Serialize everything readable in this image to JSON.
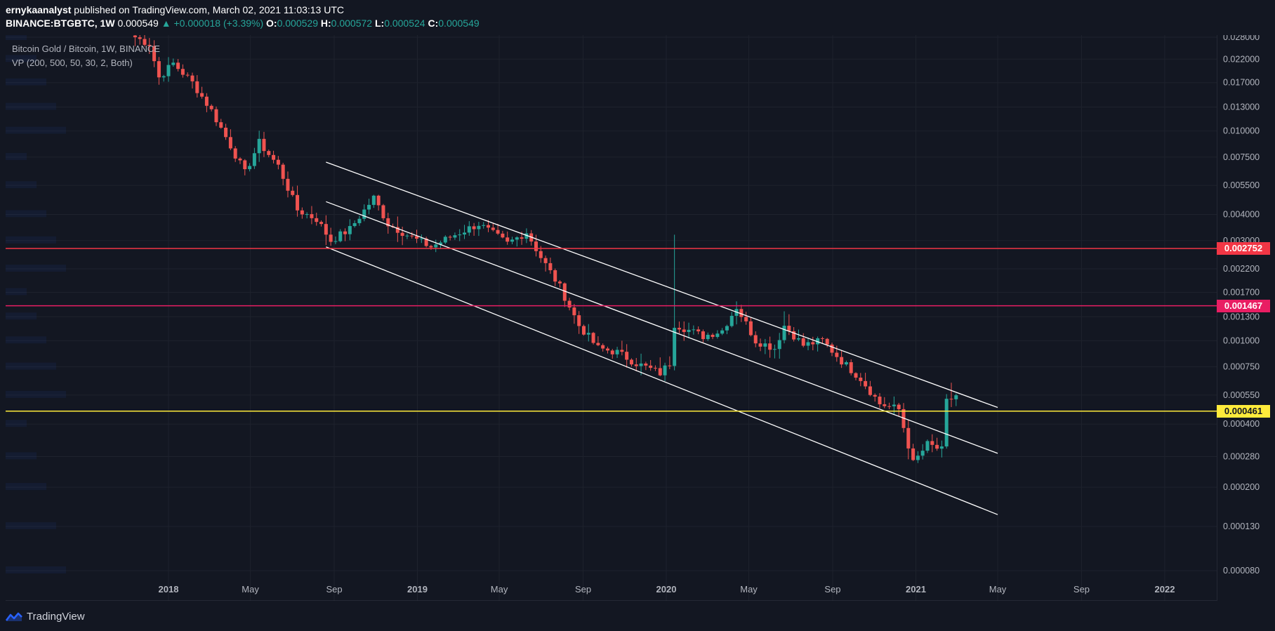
{
  "header": {
    "author": "ernykaanalyst",
    "published_text": "published on TradingView.com, March 02, 2021 11:03:13 UTC",
    "symbol": "BINANCE:BTGBTC, 1W",
    "last": "0.000549",
    "change": "+0.000018 (+3.39%)",
    "o_label": "O:",
    "o_value": "0.000529",
    "h_label": "H:",
    "h_value": "0.000572",
    "l_label": "L:",
    "l_value": "0.000524",
    "c_label": "C:",
    "c_value": "0.000549"
  },
  "legend": {
    "title": "Bitcoin Gold / Bitcoin, 1W, BINANCE",
    "indicator": "VP (200, 500, 50, 30, 2, Both)"
  },
  "branding": {
    "name": "TradingView"
  },
  "colors": {
    "background": "#131722",
    "up": "#26a69a",
    "down": "#ef5350",
    "red_line": "#f23645",
    "pink_line": "#e91e63",
    "yellow_line": "#ffeb3b",
    "channel": "#ffffff",
    "grid": "#1e222d",
    "axis_text": "#b2b5be"
  },
  "chart_data": {
    "type": "candlestick",
    "scale": "log",
    "interval": "1W",
    "y_ticks": [
      "0.028000",
      "0.022000",
      "0.017000",
      "0.013000",
      "0.010000",
      "0.007500",
      "0.005500",
      "0.004000",
      "0.003000",
      "0.002200",
      "0.001700",
      "0.001300",
      "0.001000",
      "0.000750",
      "0.000550",
      "0.000400",
      "0.000280",
      "0.000200",
      "0.000130",
      "0.000080"
    ],
    "x_ticks": [
      {
        "label": "2018",
        "date": "2018-01-01",
        "bold": true
      },
      {
        "label": "May",
        "date": "2018-05-01",
        "bold": false
      },
      {
        "label": "Sep",
        "date": "2018-09-01",
        "bold": false
      },
      {
        "label": "2019",
        "date": "2019-01-01",
        "bold": true
      },
      {
        "label": "May",
        "date": "2019-05-01",
        "bold": false
      },
      {
        "label": "Sep",
        "date": "2019-09-01",
        "bold": false
      },
      {
        "label": "2020",
        "date": "2020-01-01",
        "bold": true
      },
      {
        "label": "May",
        "date": "2020-05-01",
        "bold": false
      },
      {
        "label": "Sep",
        "date": "2020-09-01",
        "bold": false
      },
      {
        "label": "2021",
        "date": "2021-01-01",
        "bold": true
      },
      {
        "label": "May",
        "date": "2021-05-01",
        "bold": false
      },
      {
        "label": "Sep",
        "date": "2021-09-01",
        "bold": false
      },
      {
        "label": "2022",
        "date": "2022-01-01",
        "bold": true
      }
    ],
    "horizontal_levels": [
      {
        "price": 0.002752,
        "label": "0.002752",
        "color": "#f23645",
        "text_color": "#ffffff"
      },
      {
        "price": 0.001467,
        "label": "0.001467",
        "color": "#e91e63",
        "text_color": "#ffffff"
      },
      {
        "price": 0.000461,
        "label": "0.000461",
        "color": "#ffeb3b",
        "text_color": "#131722"
      }
    ],
    "channel_lines": [
      {
        "start_date": "2018-08-20",
        "start_price": 0.0071,
        "end_date": "2021-05-01",
        "end_price": 0.00048
      },
      {
        "start_date": "2018-08-20",
        "start_price": 0.0046,
        "end_date": "2021-05-01",
        "end_price": 0.00029
      },
      {
        "start_date": "2018-08-20",
        "start_price": 0.0028,
        "end_date": "2021-05-01",
        "end_price": 0.000148
      }
    ],
    "anchors": [
      [
        "2017-11-13",
        0.028
      ],
      [
        "2017-12-04",
        0.026
      ],
      [
        "2017-12-18",
        0.018
      ],
      [
        "2018-01-08",
        0.021
      ],
      [
        "2018-02-05",
        0.017
      ],
      [
        "2018-03-05",
        0.0125
      ],
      [
        "2018-04-02",
        0.0085
      ],
      [
        "2018-04-23",
        0.0063
      ],
      [
        "2018-05-14",
        0.0088
      ],
      [
        "2018-06-11",
        0.0068
      ],
      [
        "2018-07-09",
        0.0042
      ],
      [
        "2018-08-06",
        0.0038
      ],
      [
        "2018-08-27",
        0.003
      ],
      [
        "2018-09-24",
        0.0034
      ],
      [
        "2018-10-29",
        0.0048
      ],
      [
        "2018-11-19",
        0.0036
      ],
      [
        "2018-12-24",
        0.0031
      ],
      [
        "2019-01-21",
        0.0028
      ],
      [
        "2019-02-25",
        0.0032
      ],
      [
        "2019-04-01",
        0.0036
      ],
      [
        "2019-05-13",
        0.0029
      ],
      [
        "2019-06-10",
        0.0033
      ],
      [
        "2019-07-01",
        0.0025
      ],
      [
        "2019-07-29",
        0.0018
      ],
      [
        "2019-08-26",
        0.00118
      ],
      [
        "2019-09-23",
        0.00092
      ],
      [
        "2019-10-21",
        0.00088
      ],
      [
        "2019-11-18",
        0.00078
      ],
      [
        "2019-12-23",
        0.0007
      ],
      [
        "2020-01-06",
        0.00078
      ],
      [
        "2020-01-13",
        0.0012
      ],
      [
        "2020-02-24",
        0.00105
      ],
      [
        "2020-03-23",
        0.00112
      ],
      [
        "2020-04-13",
        0.00145
      ],
      [
        "2020-05-11",
        0.001
      ],
      [
        "2020-06-08",
        0.00092
      ],
      [
        "2020-06-22",
        0.00118
      ],
      [
        "2020-07-20",
        0.00095
      ],
      [
        "2020-08-17",
        0.001
      ],
      [
        "2020-09-14",
        0.0008
      ],
      [
        "2020-10-12",
        0.00066
      ],
      [
        "2020-11-09",
        0.0005
      ],
      [
        "2020-12-07",
        0.00047
      ],
      [
        "2020-12-28",
        0.00026
      ],
      [
        "2021-01-18",
        0.00032
      ],
      [
        "2021-02-08",
        0.0003
      ],
      [
        "2021-02-15",
        0.00051
      ],
      [
        "2021-03-01",
        0.000549
      ]
    ],
    "spikes": [
      {
        "date": "2020-01-13",
        "high": 0.0032
      },
      {
        "date": "2020-06-22",
        "high": 0.00138
      },
      {
        "date": "2021-02-22",
        "high": 0.00063
      }
    ]
  }
}
